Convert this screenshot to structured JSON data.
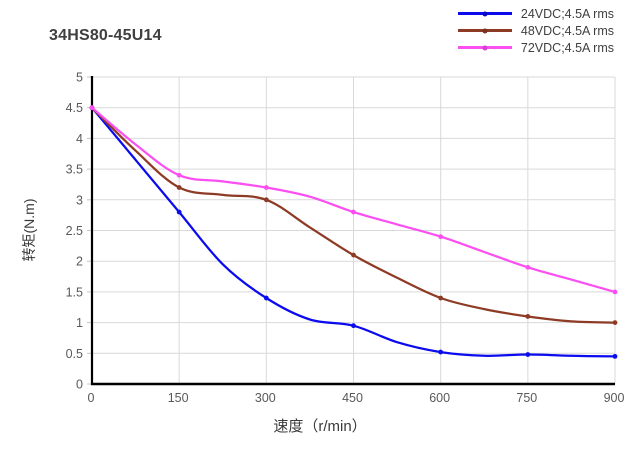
{
  "chart_data": {
    "type": "line",
    "title": "34HS80-45U14",
    "xlabel": "速度（r/min）",
    "ylabel": "转矩(N.m)",
    "xlim": [
      0,
      900
    ],
    "ylim": [
      0,
      5
    ],
    "xticks": [
      0,
      150,
      300,
      450,
      600,
      750,
      900
    ],
    "yticks": [
      0,
      0.5,
      1,
      1.5,
      2,
      2.5,
      3,
      3.5,
      4,
      4.5,
      5
    ],
    "grid": true,
    "legend_position": "top-right",
    "x": [
      0,
      75,
      150,
      225,
      300,
      375,
      450,
      525,
      600,
      675,
      750,
      825,
      900
    ],
    "marker_step": 150,
    "series": [
      {
        "name": "24VDC;4.5A rms",
        "color": "#0b0bee",
        "values": [
          4.5,
          3.65,
          2.8,
          1.95,
          1.4,
          1.05,
          0.95,
          0.68,
          0.52,
          0.46,
          0.48,
          0.46,
          0.45
        ]
      },
      {
        "name": "48VDC;4.5A rms",
        "color": "#8e3b26",
        "values": [
          4.5,
          3.8,
          3.2,
          3.08,
          3.0,
          2.55,
          2.1,
          1.73,
          1.4,
          1.22,
          1.1,
          1.02,
          1.0
        ]
      },
      {
        "name": "72VDC;4.5A rms",
        "color": "#fb4ff2",
        "values": [
          4.5,
          3.9,
          3.4,
          3.3,
          3.2,
          3.05,
          2.8,
          2.6,
          2.4,
          2.15,
          1.9,
          1.7,
          1.5
        ]
      }
    ],
    "style": {
      "grid_color": "#d9d9d9",
      "tick_color": "#c4c4c4",
      "axis_color": "#000000",
      "tick_text_color": "#595959",
      "title_text_color": "#3f3f3f"
    }
  }
}
